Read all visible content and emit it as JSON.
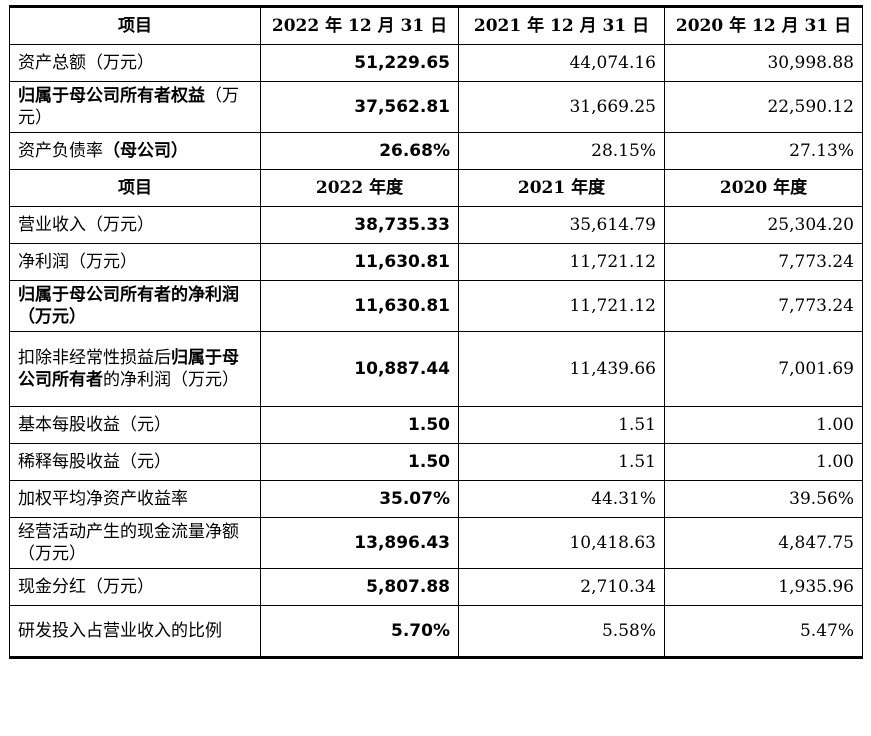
{
  "header1": [
    "项目",
    "2022 年 12 月 31 日",
    "2021 年 12 月 31 日",
    "2020 年 12 月 31 日"
  ],
  "header2": [
    "项目",
    "2022 年度",
    "2021 年度",
    "2020 年度"
  ],
  "section1": [
    {
      "label_a": "",
      "label_b": "资产总额（万元）",
      "label_c": "",
      "v2022": "51,229.65",
      "v2021": "44,074.16",
      "v2020": "30,998.88"
    },
    {
      "label_a": "归属于母公司所有者权益",
      "label_b": "（万元）",
      "label_c": "",
      "v2022": "37,562.81",
      "v2021": "31,669.25",
      "v2020": "22,590.12"
    },
    {
      "label_a": "",
      "label_b": "资产负债率",
      "label_c": "（母公司）",
      "v2022": "26.68%",
      "v2021": "28.15%",
      "v2020": "27.13%"
    }
  ],
  "section2": [
    {
      "label_a": "",
      "label_b": "营业收入（万元）",
      "label_c": "",
      "v2022": "38,735.33",
      "v2021": "35,614.79",
      "v2020": "25,304.20"
    },
    {
      "label_a": "",
      "label_b": "净利润（万元）",
      "label_c": "",
      "v2022": "11,630.81",
      "v2021": "11,721.12",
      "v2020": "7,773.24"
    },
    {
      "label_a": "归属于母公司所有者的净利润（万元）",
      "label_b": "",
      "label_c": "",
      "v2022": "11,630.81",
      "v2021": "11,721.12",
      "v2020": "7,773.24"
    },
    {
      "label_a": "",
      "label_b": "扣除非经常性损益后",
      "label_c": "",
      "label_d": "归属于母公司所有者",
      "label_e": "的净利润（万元）",
      "v2022": "10,887.44",
      "v2021": "11,439.66",
      "v2020": "7,001.69"
    },
    {
      "label_a": "",
      "label_b": "基本每股收益（元）",
      "label_c": "",
      "v2022": "1.50",
      "v2021": "1.51",
      "v2020": "1.00"
    },
    {
      "label_a": "",
      "label_b": "稀释每股收益（元）",
      "label_c": "",
      "v2022": "1.50",
      "v2021": "1.51",
      "v2020": "1.00"
    },
    {
      "label_a": "",
      "label_b": "加权平均净资产收益率",
      "label_c": "",
      "v2022": "35.07%",
      "v2021": "44.31%",
      "v2020": "39.56%"
    },
    {
      "label_a": "",
      "label_b": "经营活动产生的现金流量净额（万元）",
      "label_c": "",
      "v2022": "13,896.43",
      "v2021": "10,418.63",
      "v2020": "4,847.75"
    },
    {
      "label_a": "",
      "label_b": "现金分红（万元）",
      "label_c": "",
      "v2022": "5,807.88",
      "v2021": "2,710.34",
      "v2020": "1,935.96"
    },
    {
      "label_a": "",
      "label_b": "研发投入占营业收入的比例",
      "label_c": "",
      "v2022": "5.70%",
      "v2021": "5.58%",
      "v2020": "5.47%"
    }
  ]
}
